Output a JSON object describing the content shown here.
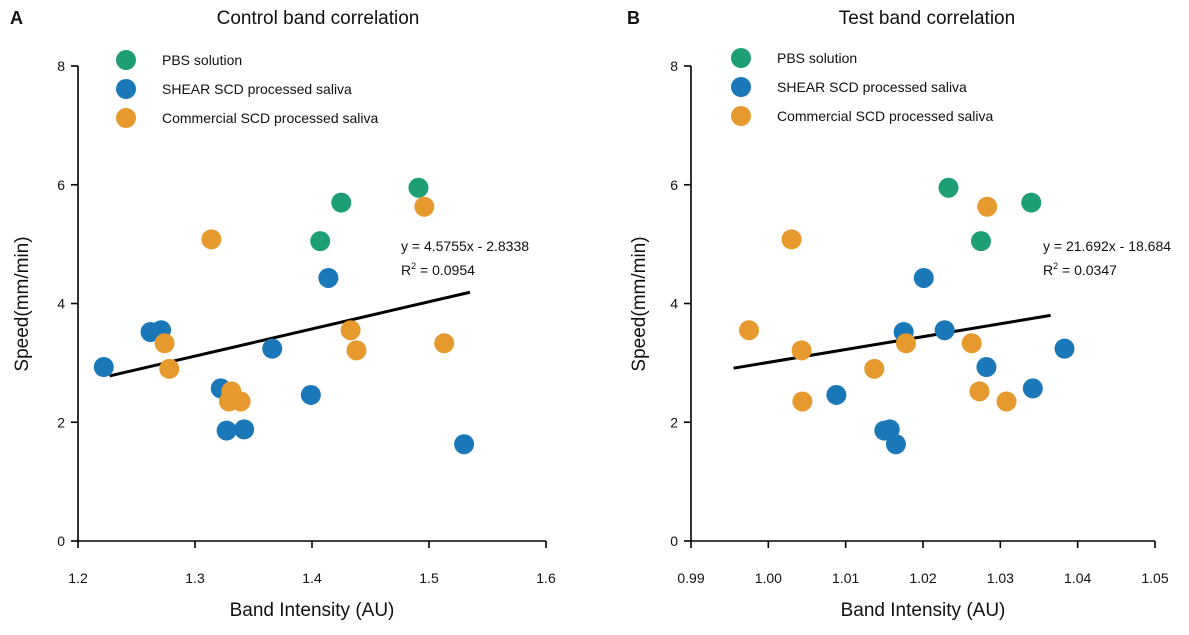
{
  "chart_data": [
    {
      "type": "scatter",
      "panel": "A",
      "title": "Control band correlation",
      "xlabel": "Band Intensity (AU)",
      "ylabel": "Speed(mm/min)",
      "xlim": [
        1.2,
        1.6
      ],
      "ylim": [
        0,
        8
      ],
      "xticks": [
        "1.2",
        "1.3",
        "1.4",
        "1.5",
        "1.6"
      ],
      "yticks": [
        "0",
        "2",
        "4",
        "6",
        "8"
      ],
      "grid": false,
      "legend_position": "top-left",
      "series": [
        {
          "name": "PBS solution",
          "color": "#1e9e74",
          "points": [
            [
              1.407,
              5.05
            ],
            [
              1.425,
              5.7
            ],
            [
              1.491,
              5.95
            ]
          ]
        },
        {
          "name": "SHEAR SCD processed saliva",
          "color": "#1a78b8",
          "points": [
            [
              1.222,
              2.93
            ],
            [
              1.262,
              3.52
            ],
            [
              1.271,
              3.55
            ],
            [
              1.322,
              2.57
            ],
            [
              1.327,
              1.86
            ],
            [
              1.342,
              1.88
            ],
            [
              1.366,
              3.24
            ],
            [
              1.399,
              2.46
            ],
            [
              1.414,
              4.43
            ],
            [
              1.53,
              1.63
            ]
          ]
        },
        {
          "name": "Commercial SCD processed saliva",
          "color": "#e69a2e",
          "points": [
            [
              1.314,
              5.08
            ],
            [
              1.274,
              3.33
            ],
            [
              1.278,
              2.9
            ],
            [
              1.331,
              2.52
            ],
            [
              1.329,
              2.35
            ],
            [
              1.339,
              2.35
            ],
            [
              1.433,
              3.55
            ],
            [
              1.438,
              3.21
            ],
            [
              1.496,
              5.63
            ],
            [
              1.513,
              3.33
            ]
          ]
        }
      ],
      "trendline": {
        "equation": "y = 4.5755x - 2.8338",
        "r2_prefix": "R",
        "r2_sup": "2",
        "r2_value": " = 0.0954",
        "slope": 4.5755,
        "intercept": -2.8338,
        "x_range": [
          1.227,
          1.535
        ]
      }
    },
    {
      "type": "scatter",
      "panel": "B",
      "title": "Test band correlation",
      "xlabel": "Band Intensity (AU)",
      "ylabel": "Speed(mm/min)",
      "xlim": [
        0.99,
        1.05
      ],
      "ylim": [
        0,
        8
      ],
      "xticks": [
        "0.99",
        "1.00",
        "1.01",
        "1.02",
        "1.03",
        "1.04",
        "1.05"
      ],
      "yticks": [
        "0",
        "2",
        "4",
        "6",
        "8"
      ],
      "grid": false,
      "legend_position": "top-left",
      "series": [
        {
          "name": "PBS solution",
          "color": "#1e9e74",
          "points": [
            [
              1.0233,
              5.95
            ],
            [
              1.0275,
              5.05
            ],
            [
              1.034,
              5.7
            ]
          ]
        },
        {
          "name": "SHEAR SCD processed saliva",
          "color": "#1a78b8",
          "points": [
            [
              1.0088,
              2.46
            ],
            [
              1.015,
              1.86
            ],
            [
              1.0157,
              1.88
            ],
            [
              1.0165,
              1.63
            ],
            [
              1.0175,
              3.52
            ],
            [
              1.0201,
              4.43
            ],
            [
              1.0228,
              3.55
            ],
            [
              1.0282,
              2.93
            ],
            [
              1.0342,
              2.57
            ],
            [
              1.0383,
              3.24
            ]
          ]
        },
        {
          "name": "Commercial SCD processed saliva",
          "color": "#e69a2e",
          "points": [
            [
              0.9975,
              3.55
            ],
            [
              1.003,
              5.08
            ],
            [
              1.0043,
              3.21
            ],
            [
              1.0044,
              2.35
            ],
            [
              1.0137,
              2.9
            ],
            [
              1.0178,
              3.33
            ],
            [
              1.0263,
              3.33
            ],
            [
              1.0273,
              2.52
            ],
            [
              1.0283,
              5.63
            ],
            [
              1.0308,
              2.35
            ]
          ]
        }
      ],
      "trendline": {
        "equation": "y = 21.692x - 18.684",
        "r2_prefix": "R",
        "r2_sup": "2",
        "r2_value": " = 0.0347",
        "slope": 21.692,
        "intercept": -18.684,
        "x_range": [
          0.9955,
          1.0365
        ]
      }
    }
  ]
}
